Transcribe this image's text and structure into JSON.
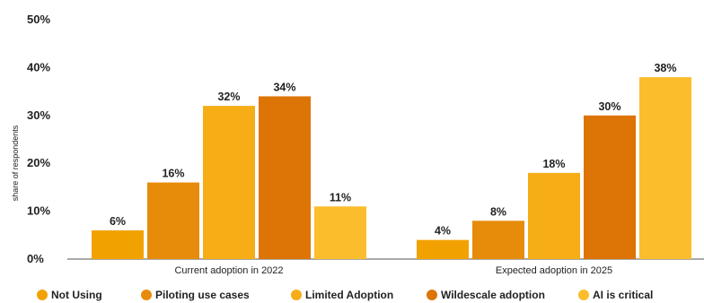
{
  "chart_data": {
    "type": "bar",
    "title": "",
    "xlabel": "",
    "ylabel": "share of respondents",
    "ylim": [
      0,
      50
    ],
    "yticks": [
      "0%",
      "10%",
      "20%",
      "30%",
      "40%",
      "50%"
    ],
    "grid": false,
    "legend_position": "bottom",
    "categories": [
      "Current adoption in 2022",
      "Expected adoption in 2025"
    ],
    "series": [
      {
        "name": "Not Using",
        "color": "#f2a200",
        "values": [
          6,
          4
        ],
        "labels": [
          "6%",
          "4%"
        ]
      },
      {
        "name": "Piloting use cases",
        "color": "#e78c0a",
        "values": [
          16,
          8
        ],
        "labels": [
          "16%",
          "8%"
        ]
      },
      {
        "name": "Limited Adoption",
        "color": "#f6ad16",
        "values": [
          32,
          18
        ],
        "labels": [
          "32%",
          "18%"
        ]
      },
      {
        "name": "Wildescale adoption",
        "color": "#dd7406",
        "values": [
          34,
          30
        ],
        "labels": [
          "34%",
          "30%"
        ]
      },
      {
        "name": "AI is critical",
        "color": "#fbbd2c",
        "values": [
          11,
          38
        ],
        "labels": [
          "11%",
          "38%"
        ]
      }
    ]
  }
}
